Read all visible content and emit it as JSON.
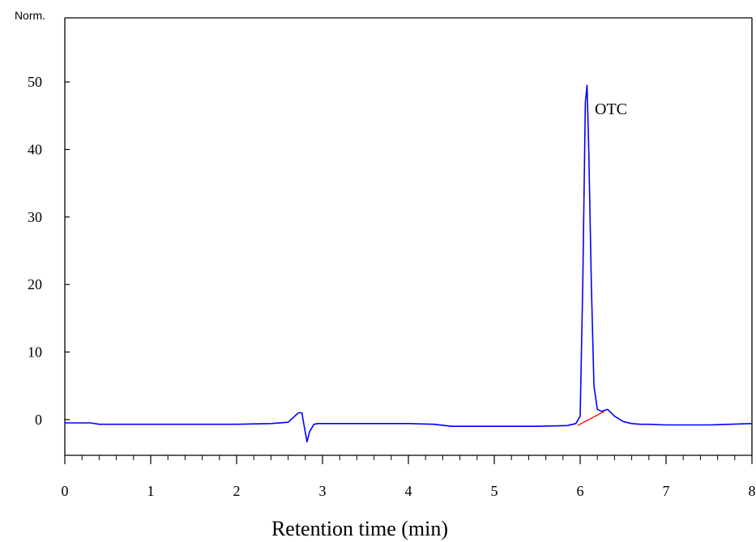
{
  "chart_data": {
    "type": "line",
    "title": "",
    "xlabel": "Retention time (min)",
    "ylabel": "Norm.",
    "xlim": [
      0,
      8
    ],
    "ylim": [
      -5.3,
      59.5
    ],
    "x_ticks": [
      0,
      1,
      2,
      3,
      4,
      5,
      6,
      7,
      8
    ],
    "y_ticks": [
      0,
      10,
      20,
      30,
      40,
      50
    ],
    "grid": false,
    "legend": "none",
    "annotations": [
      {
        "text": "OTC",
        "x": 6.17,
        "y": 45.2
      }
    ],
    "series": [
      {
        "color": "#0000ff",
        "x": [
          0,
          0.3,
          0.4,
          1.0,
          2.0,
          2.4,
          2.6,
          2.72,
          2.76,
          2.78,
          2.82,
          2.85,
          2.9,
          2.95,
          3.2,
          4.0,
          4.3,
          4.5,
          5.0,
          5.5,
          5.85,
          5.95,
          6.0,
          6.03,
          6.06,
          6.08,
          6.1,
          6.13,
          6.16,
          6.2,
          6.25,
          6.32,
          6.4,
          6.5,
          6.6,
          6.7,
          6.8,
          7.0,
          7.5,
          8.0
        ],
        "y": [
          -0.5,
          -0.5,
          -0.7,
          -0.7,
          -0.7,
          -0.6,
          -0.4,
          1.0,
          1.0,
          -0.5,
          -3.3,
          -1.8,
          -0.7,
          -0.6,
          -0.6,
          -0.6,
          -0.7,
          -1.0,
          -1.0,
          -1.0,
          -0.9,
          -0.6,
          0.5,
          20.0,
          47.0,
          49.5,
          40.0,
          20.0,
          5.0,
          1.5,
          1.2,
          1.5,
          0.5,
          -0.3,
          -0.6,
          -0.7,
          -0.7,
          -0.8,
          -0.8,
          -0.6
        ]
      },
      {
        "color": "#ff0000",
        "x": [
          5.97,
          6.28
        ],
        "y": [
          -0.9,
          1.2
        ]
      }
    ]
  }
}
